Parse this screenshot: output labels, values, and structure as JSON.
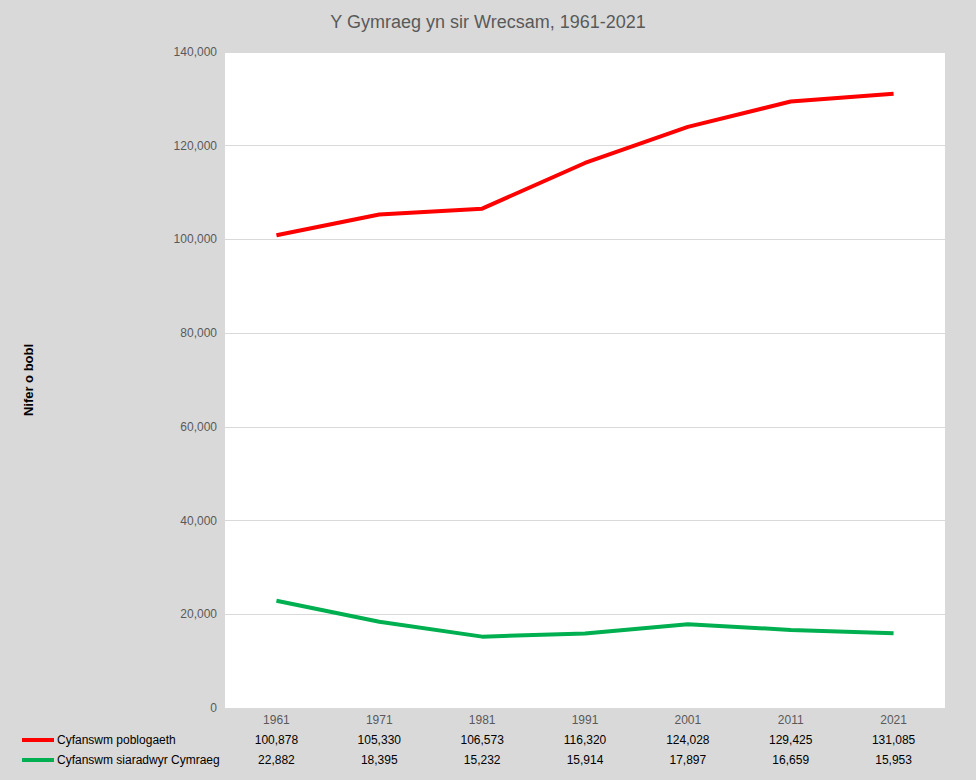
{
  "chart_data": {
    "type": "line",
    "title": "Y Gymraeg yn sir Wrecsam, 1961-2021",
    "y_label": "Nifer o bobl",
    "categories": [
      "1961",
      "1971",
      "1981",
      "1991",
      "2001",
      "2011",
      "2021"
    ],
    "series": [
      {
        "name": "Cyfanswm poblogaeth",
        "color": "#ff0000",
        "values": [
          100878,
          105330,
          106573,
          116320,
          124028,
          129425,
          131085
        ],
        "value_labels": [
          "100,878",
          "105,330",
          "106,573",
          "116,320",
          "124,028",
          "129,425",
          "131,085"
        ]
      },
      {
        "name": "Cyfanswm siaradwyr Cymraeg",
        "color": "#00b050",
        "values": [
          22882,
          18395,
          15232,
          15914,
          17897,
          16659,
          15953
        ],
        "value_labels": [
          "22,882",
          "18,395",
          "15,232",
          "15,914",
          "17,897",
          "16,659",
          "15,953"
        ]
      }
    ],
    "ylim": [
      0,
      140000
    ],
    "yticks": [
      0,
      {
        "value": 20000,
        "label": "20,000"
      },
      {
        "value": 40000,
        "label": "40,000"
      },
      {
        "value": 60000,
        "label": "60,000"
      },
      {
        "value": 80000,
        "label": "80,000"
      },
      {
        "value": 100000,
        "label": "100,000"
      },
      {
        "value": 120000,
        "label": "120,000"
      },
      {
        "value": 140000,
        "label": "140,000"
      }
    ],
    "grid": true
  }
}
